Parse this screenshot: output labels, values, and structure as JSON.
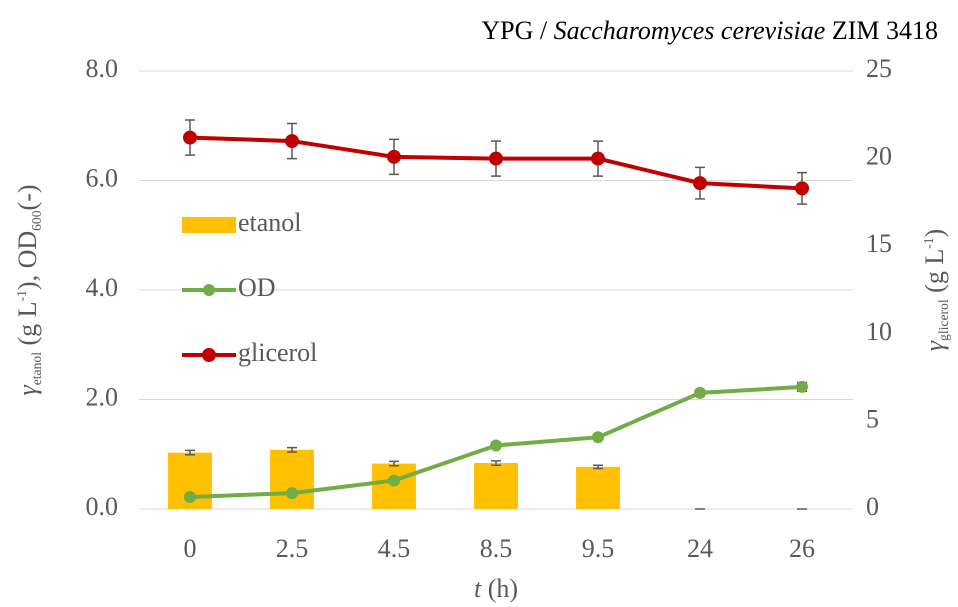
{
  "chart_data": {
    "type": "bar-line",
    "title": [
      {
        "text": "YPG / "
      },
      {
        "text": "Saccharomyces cerevisiae",
        "italic": true
      },
      {
        "text": " ZIM 3418"
      }
    ],
    "xlabel": [
      {
        "text": "t",
        "italic": true
      },
      {
        "text": " (h)"
      }
    ],
    "ylabel": [
      {
        "text": "γ",
        "italic": true
      },
      {
        "text": "etanol",
        "sub": true
      },
      {
        "text": " (g L"
      },
      {
        "text": "-1",
        "sup": true
      },
      {
        "text": "), OD"
      },
      {
        "text": "600",
        "sub": true
      },
      {
        "text": "(-)"
      }
    ],
    "y2label": [
      {
        "text": "γ",
        "italic": true
      },
      {
        "text": "glicerol",
        "sub": true
      },
      {
        "text": " (g L"
      },
      {
        "text": "-1",
        "sup": true
      },
      {
        "text": ")"
      }
    ],
    "categories": [
      "0",
      "2.5",
      "4.5",
      "8.5",
      "9.5",
      "24",
      "26"
    ],
    "series": [
      {
        "name": "etanol",
        "type": "bar",
        "color": "#ffc000",
        "values": [
          1.03,
          1.08,
          0.83,
          0.84,
          0.77,
          0,
          0
        ],
        "errors": [
          0.04,
          0.04,
          0.04,
          0.04,
          0.03,
          0,
          0
        ]
      },
      {
        "name": "OD",
        "type": "line",
        "color": "#70ad47",
        "values": [
          0.22,
          0.29,
          0.52,
          1.16,
          1.31,
          2.12,
          2.23
        ],
        "errors": [
          0.02,
          0.02,
          0.03,
          0.03,
          0.03,
          0.06,
          0.08
        ]
      },
      {
        "name": "glicerol",
        "type": "line",
        "axis": "y2",
        "color": "#c00000",
        "values": [
          21.2,
          21.0,
          20.1,
          20.0,
          20.0,
          18.6,
          18.3
        ],
        "errors": [
          1.0,
          1.0,
          1.0,
          1.0,
          1.0,
          0.9,
          0.9
        ]
      }
    ],
    "ylim": [
      0,
      8
    ],
    "yticks": [
      {
        "value": 0,
        "label": "0.0"
      },
      {
        "value": 2,
        "label": "2.0"
      },
      {
        "value": 4,
        "label": "4.0"
      },
      {
        "value": 6,
        "label": "6.0"
      },
      {
        "value": 8,
        "label": "8.0"
      }
    ],
    "y2lim": [
      0,
      25
    ],
    "y2ticks": [
      0,
      5,
      10,
      15,
      20,
      25
    ],
    "grid": true,
    "legend": "left"
  }
}
